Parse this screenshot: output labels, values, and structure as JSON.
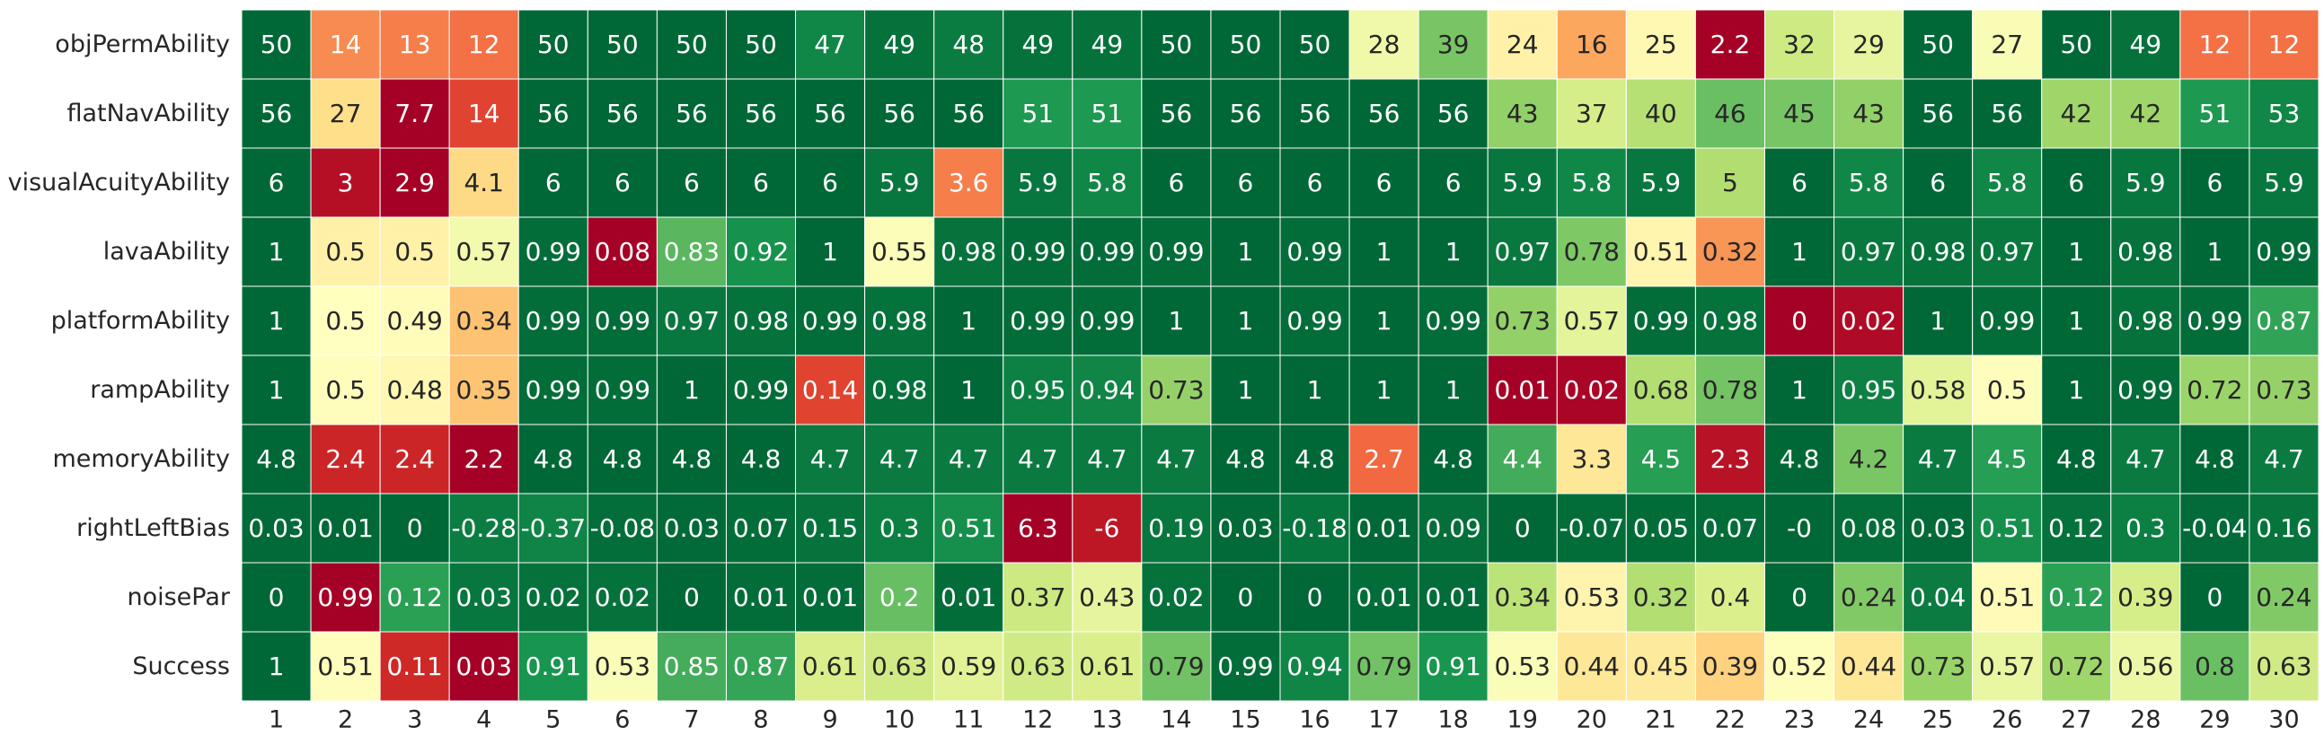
{
  "chart_data": {
    "type": "heatmap",
    "colormap": "RdYlGn (row-normalized)",
    "grid": true,
    "colorbar": false,
    "rows": [
      "objPermAbility",
      "flatNavAbility",
      "visualAcuityAbility",
      "lavaAbility",
      "platformAbility",
      "rampAbility",
      "memoryAbility",
      "rightLeftBias",
      "noisePar",
      "Success"
    ],
    "columns": [
      "1",
      "2",
      "3",
      "4",
      "5",
      "6",
      "7",
      "8",
      "9",
      "10",
      "11",
      "12",
      "13",
      "14",
      "15",
      "16",
      "17",
      "18",
      "19",
      "20",
      "21",
      "22",
      "23",
      "24",
      "25",
      "26",
      "27",
      "28",
      "29",
      "30"
    ],
    "values": [
      [
        50,
        14,
        13,
        12,
        50,
        50,
        50,
        50,
        47,
        49,
        48,
        49,
        49,
        50,
        50,
        50,
        28,
        39,
        24,
        16,
        25,
        2.2,
        32,
        29,
        50,
        27,
        50,
        49,
        12,
        12
      ],
      [
        56,
        27,
        7.7,
        14,
        56,
        56,
        56,
        56,
        56,
        56,
        56,
        51,
        51,
        56,
        56,
        56,
        56,
        56,
        43,
        37,
        40,
        46,
        45,
        43,
        56,
        56,
        42,
        42,
        51,
        53
      ],
      [
        6,
        3,
        2.9,
        4.1,
        6,
        6,
        6,
        6,
        6,
        5.9,
        3.6,
        5.9,
        5.8,
        6,
        6,
        6,
        6,
        6,
        5.9,
        5.8,
        5.9,
        5,
        6,
        5.8,
        6,
        5.8,
        6,
        5.9,
        6,
        5.9
      ],
      [
        1,
        0.5,
        0.5,
        0.57,
        0.99,
        0.08,
        0.83,
        0.92,
        1,
        0.55,
        0.98,
        0.99,
        0.99,
        0.99,
        1,
        0.99,
        1,
        1,
        0.97,
        0.78,
        0.51,
        0.32,
        1,
        0.97,
        0.98,
        0.97,
        1,
        0.98,
        1,
        0.99
      ],
      [
        1,
        0.5,
        0.49,
        0.34,
        0.99,
        0.99,
        0.97,
        0.98,
        0.99,
        0.98,
        1,
        0.99,
        0.99,
        1,
        1,
        0.99,
        1,
        0.99,
        0.73,
        0.57,
        0.99,
        0.98,
        0,
        0.02,
        1,
        0.99,
        1,
        0.98,
        0.99,
        0.87
      ],
      [
        1,
        0.5,
        0.48,
        0.35,
        0.99,
        0.99,
        1,
        0.99,
        0.14,
        0.98,
        1,
        0.95,
        0.94,
        0.73,
        1,
        1,
        1,
        1,
        0.01,
        0.02,
        0.68,
        0.78,
        1,
        0.95,
        0.58,
        0.5,
        1,
        0.99,
        0.72,
        0.73
      ],
      [
        4.8,
        2.4,
        2.4,
        2.2,
        4.8,
        4.8,
        4.8,
        4.8,
        4.7,
        4.7,
        4.7,
        4.7,
        4.7,
        4.7,
        4.8,
        4.8,
        2.7,
        4.8,
        4.4,
        3.3,
        4.5,
        2.3,
        4.8,
        4.2,
        4.7,
        4.5,
        4.8,
        4.7,
        4.8,
        4.7
      ],
      [
        0.03,
        0.01,
        0,
        -0.28,
        -0.37,
        -0.08,
        0.03,
        0.07,
        0.15,
        0.3,
        0.51,
        6.3,
        -6,
        0.19,
        0.03,
        -0.18,
        0.01,
        0.09,
        0,
        -0.07,
        0.05,
        0.07,
        0,
        0.08,
        0.03,
        0.51,
        0.12,
        0.3,
        -0.04,
        0.16
      ],
      [
        0,
        0.99,
        0.12,
        0.03,
        0.02,
        0.02,
        0,
        0.01,
        0.01,
        0.2,
        0.01,
        0.37,
        0.43,
        0.02,
        0,
        0,
        0.01,
        0.01,
        0.34,
        0.53,
        0.32,
        0.4,
        0,
        0.24,
        0.04,
        0.51,
        0.12,
        0.39,
        0,
        0.24
      ],
      [
        1,
        0.51,
        0.11,
        0.03,
        0.91,
        0.53,
        0.85,
        0.87,
        0.61,
        0.63,
        0.59,
        0.63,
        0.61,
        0.79,
        0.99,
        0.94,
        0.79,
        0.91,
        0.53,
        0.44,
        0.45,
        0.39,
        0.52,
        0.44,
        0.73,
        0.57,
        0.72,
        0.56,
        0.8,
        0.63
      ]
    ],
    "labels": [
      [
        "50",
        "14",
        "13",
        "12",
        "50",
        "50",
        "50",
        "50",
        "47",
        "49",
        "48",
        "49",
        "49",
        "50",
        "50",
        "50",
        "28",
        "39",
        "24",
        "16",
        "25",
        "2.2",
        "32",
        "29",
        "50",
        "27",
        "50",
        "49",
        "12",
        "12"
      ],
      [
        "56",
        "27",
        "7.7",
        "14",
        "56",
        "56",
        "56",
        "56",
        "56",
        "56",
        "56",
        "51",
        "51",
        "56",
        "56",
        "56",
        "56",
        "56",
        "43",
        "37",
        "40",
        "46",
        "45",
        "43",
        "56",
        "56",
        "42",
        "42",
        "51",
        "53"
      ],
      [
        "6",
        "3",
        "2.9",
        "4.1",
        "6",
        "6",
        "6",
        "6",
        "6",
        "5.9",
        "3.6",
        "5.9",
        "5.8",
        "6",
        "6",
        "6",
        "6",
        "6",
        "5.9",
        "5.8",
        "5.9",
        "5",
        "6",
        "5.8",
        "6",
        "5.8",
        "6",
        "5.9",
        "6",
        "5.9"
      ],
      [
        "1",
        "0.5",
        "0.5",
        "0.57",
        "0.99",
        "0.08",
        "0.83",
        "0.92",
        "1",
        "0.55",
        "0.98",
        "0.99",
        "0.99",
        "0.99",
        "1",
        "0.99",
        "1",
        "1",
        "0.97",
        "0.78",
        "0.51",
        "0.32",
        "1",
        "0.97",
        "0.98",
        "0.97",
        "1",
        "0.98",
        "1",
        "0.99"
      ],
      [
        "1",
        "0.5",
        "0.49",
        "0.34",
        "0.99",
        "0.99",
        "0.97",
        "0.98",
        "0.99",
        "0.98",
        "1",
        "0.99",
        "0.99",
        "1",
        "1",
        "0.99",
        "1",
        "0.99",
        "0.73",
        "0.57",
        "0.99",
        "0.98",
        "0",
        "0.02",
        "1",
        "0.99",
        "1",
        "0.98",
        "0.99",
        "0.87"
      ],
      [
        "1",
        "0.5",
        "0.48",
        "0.35",
        "0.99",
        "0.99",
        "1",
        "0.99",
        "0.14",
        "0.98",
        "1",
        "0.95",
        "0.94",
        "0.73",
        "1",
        "1",
        "1",
        "1",
        "0.01",
        "0.02",
        "0.68",
        "0.78",
        "1",
        "0.95",
        "0.58",
        "0.5",
        "1",
        "0.99",
        "0.72",
        "0.73"
      ],
      [
        "4.8",
        "2.4",
        "2.4",
        "2.2",
        "4.8",
        "4.8",
        "4.8",
        "4.8",
        "4.7",
        "4.7",
        "4.7",
        "4.7",
        "4.7",
        "4.7",
        "4.8",
        "4.8",
        "2.7",
        "4.8",
        "4.4",
        "3.3",
        "4.5",
        "2.3",
        "4.8",
        "4.2",
        "4.7",
        "4.5",
        "4.8",
        "4.7",
        "4.8",
        "4.7"
      ],
      [
        "0.03",
        "0.01",
        "0",
        "-0.28",
        "-0.37",
        "-0.08",
        "0.03",
        "0.07",
        "0.15",
        "0.3",
        "0.51",
        "6.3",
        "-6",
        "0.19",
        "0.03",
        "-0.18",
        "0.01",
        "0.09",
        "0",
        "-0.07",
        "0.05",
        "0.07",
        "-0",
        "0.08",
        "0.03",
        "0.51",
        "0.12",
        "0.3",
        "-0.04",
        "0.16"
      ],
      [
        "0",
        "0.99",
        "0.12",
        "0.03",
        "0.02",
        "0.02",
        "0",
        "0.01",
        "0.01",
        "0.2",
        "0.01",
        "0.37",
        "0.43",
        "0.02",
        "0",
        "0",
        "0.01",
        "0.01",
        "0.34",
        "0.53",
        "0.32",
        "0.4",
        "0",
        "0.24",
        "0.04",
        "0.51",
        "0.12",
        "0.39",
        "0",
        "0.24"
      ],
      [
        "1",
        "0.51",
        "0.11",
        "0.03",
        "0.91",
        "0.53",
        "0.85",
        "0.87",
        "0.61",
        "0.63",
        "0.59",
        "0.63",
        "0.61",
        "0.79",
        "0.99",
        "0.94",
        "0.79",
        "0.91",
        "0.53",
        "0.44",
        "0.45",
        "0.39",
        "0.52",
        "0.44",
        "0.73",
        "0.57",
        "0.72",
        "0.56",
        "0.8",
        "0.63"
      ]
    ],
    "colors": {
      "low": "#a50026",
      "mid": "#ffffbf",
      "high": "#006837",
      "text_dark": "#262626",
      "text_light": "#ffffff",
      "grid_line": "#ffffff"
    }
  }
}
